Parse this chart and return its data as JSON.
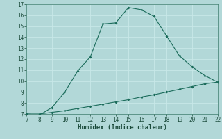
{
  "title": "",
  "xlabel": "Humidex (Indice chaleur)",
  "ylabel": "",
  "background_color": "#b2d8d8",
  "grid_color": "#c8e8e8",
  "line_color": "#1a6b5a",
  "x_main": [
    7,
    8,
    9,
    10,
    11,
    12,
    13,
    14,
    15,
    16,
    17,
    18,
    19,
    20,
    21,
    22
  ],
  "y_main": [
    7.0,
    6.9,
    7.6,
    9.0,
    10.9,
    12.2,
    15.2,
    15.3,
    16.7,
    16.5,
    15.9,
    14.1,
    12.3,
    11.3,
    10.5,
    9.9
  ],
  "x_ref": [
    7,
    8,
    9,
    10,
    11,
    12,
    13,
    14,
    15,
    16,
    17,
    18,
    19,
    20,
    21,
    22
  ],
  "y_ref": [
    7.0,
    7.0,
    7.15,
    7.3,
    7.5,
    7.7,
    7.9,
    8.1,
    8.3,
    8.55,
    8.75,
    9.0,
    9.25,
    9.5,
    9.75,
    9.9
  ],
  "xlim": [
    7,
    22
  ],
  "ylim": [
    7,
    17
  ],
  "xticks": [
    7,
    8,
    9,
    10,
    11,
    12,
    13,
    14,
    15,
    16,
    17,
    18,
    19,
    20,
    21,
    22
  ],
  "yticks": [
    7,
    8,
    9,
    10,
    11,
    12,
    13,
    14,
    15,
    16,
    17
  ],
  "tick_fontsize": 5.5,
  "xlabel_fontsize": 6.5,
  "marker_size": 2.0,
  "line_width": 0.8
}
